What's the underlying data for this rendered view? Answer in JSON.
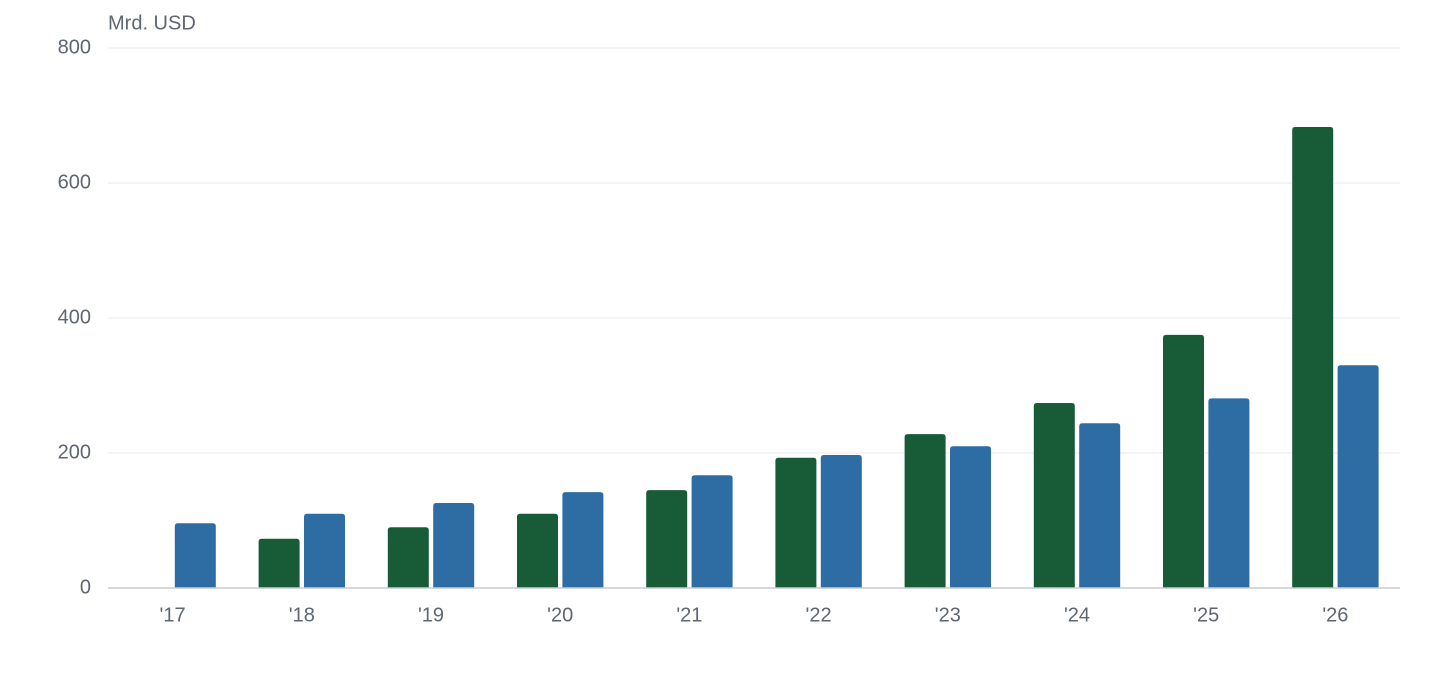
{
  "chart_data": {
    "type": "bar",
    "y_axis_label": "Mrd. USD",
    "categories": [
      "'17",
      "'18",
      "'19",
      "'20",
      "'21",
      "'22",
      "'23",
      "'24",
      "'25",
      "'26"
    ],
    "series": [
      {
        "color": "#175c37",
        "values": [
          null,
          73,
          90,
          110,
          145,
          193,
          228,
          274,
          375,
          683
        ]
      },
      {
        "color": "#2e6ca4",
        "values": [
          96,
          110,
          126,
          142,
          167,
          197,
          210,
          244,
          281,
          330
        ]
      }
    ],
    "ylim": [
      0,
      800
    ],
    "yticks": [
      0,
      200,
      400,
      600,
      800
    ],
    "grid": true
  }
}
